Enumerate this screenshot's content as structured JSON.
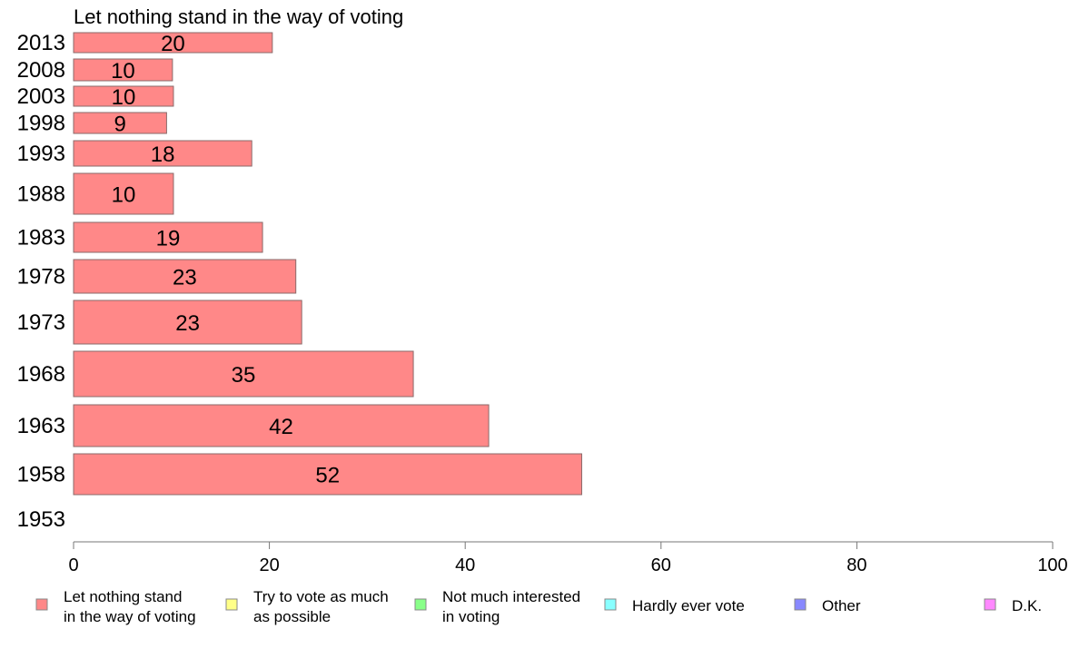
{
  "chart_data": {
    "type": "bar",
    "orientation": "horizontal",
    "title": "Let nothing stand in the way of voting",
    "categories": [
      "2013",
      "2008",
      "2003",
      "1998",
      "1993",
      "1988",
      "1983",
      "1978",
      "1973",
      "1968",
      "1963",
      "1958",
      "1953"
    ],
    "series": [
      {
        "name": "Let nothing stand in the way of voting",
        "color": "#ff8888",
        "values": [
          20.3,
          10.1,
          10.2,
          9.5,
          18.2,
          10.2,
          19.3,
          22.7,
          23.3,
          34.7,
          42.4,
          51.9,
          null
        ],
        "labels": [
          "20",
          "10",
          "10",
          "9",
          "18",
          "10",
          "19",
          "23",
          "23",
          "35",
          "42",
          "52",
          ""
        ]
      }
    ],
    "xlim": [
      0,
      100
    ],
    "xticks": [
      0,
      20,
      40,
      60,
      80,
      100
    ],
    "xlabel": "",
    "ylabel": "",
    "grid": false,
    "legend_position": "bottom",
    "legend": [
      {
        "label_lines": [
          "Let nothing stand",
          "in the way of voting"
        ],
        "color": "#ff8888"
      },
      {
        "label_lines": [
          "Try to vote as much",
          "as possible"
        ],
        "color": "#ffff88"
      },
      {
        "label_lines": [
          "Not much interested",
          "in voting"
        ],
        "color": "#88ff88"
      },
      {
        "label_lines": [
          "Hardly ever vote"
        ],
        "color": "#88ffff"
      },
      {
        "label_lines": [
          "Other"
        ],
        "color": "#8888ff"
      },
      {
        "label_lines": [
          "D.K."
        ],
        "color": "#ff88ff"
      }
    ]
  }
}
